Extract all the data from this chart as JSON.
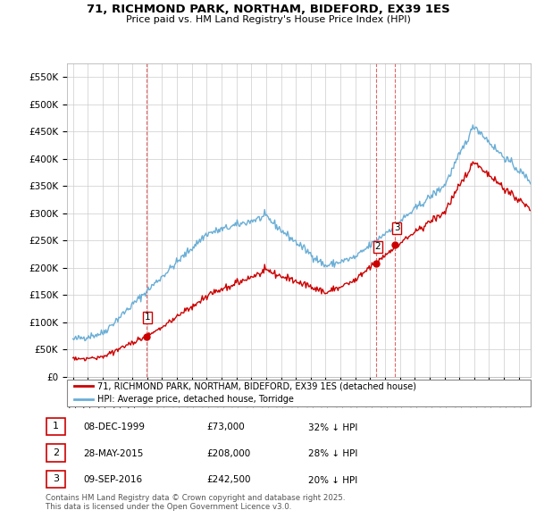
{
  "title": "71, RICHMOND PARK, NORTHAM, BIDEFORD, EX39 1ES",
  "subtitle": "Price paid vs. HM Land Registry's House Price Index (HPI)",
  "ylabel_ticks": [
    "£0",
    "£50K",
    "£100K",
    "£150K",
    "£200K",
    "£250K",
    "£300K",
    "£350K",
    "£400K",
    "£450K",
    "£500K",
    "£550K"
  ],
  "ytick_values": [
    0,
    50000,
    100000,
    150000,
    200000,
    250000,
    300000,
    350000,
    400000,
    450000,
    500000,
    550000
  ],
  "ylim": [
    0,
    575000
  ],
  "hpi_color": "#6aaed6",
  "price_color": "#cc0000",
  "background_color": "#ffffff",
  "grid_color": "#cccccc",
  "sale_points": [
    {
      "date_num": 1999.93,
      "price": 73000,
      "label": "1"
    },
    {
      "date_num": 2015.41,
      "price": 208000,
      "label": "2"
    },
    {
      "date_num": 2016.69,
      "price": 242500,
      "label": "3"
    }
  ],
  "legend_entries": [
    "71, RICHMOND PARK, NORTHAM, BIDEFORD, EX39 1ES (detached house)",
    "HPI: Average price, detached house, Torridge"
  ],
  "table_rows": [
    {
      "num": "1",
      "date": "08-DEC-1999",
      "price": "£73,000",
      "pct": "32% ↓ HPI"
    },
    {
      "num": "2",
      "date": "28-MAY-2015",
      "price": "£208,000",
      "pct": "28% ↓ HPI"
    },
    {
      "num": "3",
      "date": "09-SEP-2016",
      "price": "£242,500",
      "pct": "20% ↓ HPI"
    }
  ],
  "footer": "Contains HM Land Registry data © Crown copyright and database right 2025.\nThis data is licensed under the Open Government Licence v3.0.",
  "xlim_left": 1994.6,
  "xlim_right": 2025.8,
  "xticks_start": 1995,
  "xticks_end": 2025
}
